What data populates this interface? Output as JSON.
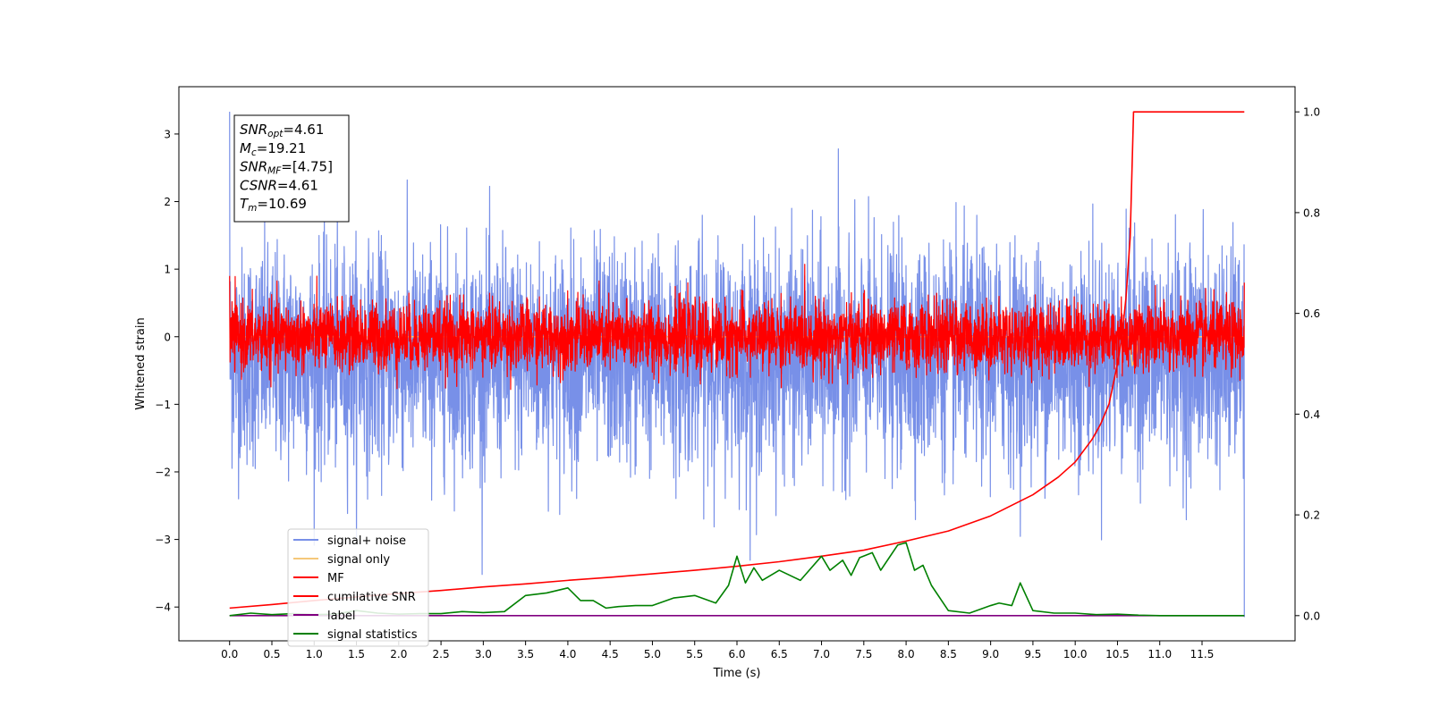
{
  "chart_data": {
    "type": "line",
    "xlabel": "Time (s)",
    "ylabel": "Whitened strain",
    "xlim": [
      -0.6,
      12.6
    ],
    "ylim": [
      -4.5,
      3.7
    ],
    "y2lim": [
      -0.05,
      1.05
    ],
    "xticks": [
      0.0,
      0.5,
      1.0,
      1.5,
      2.0,
      2.5,
      3.0,
      3.5,
      4.0,
      4.5,
      5.0,
      5.5,
      6.0,
      6.5,
      7.0,
      7.5,
      8.0,
      8.5,
      9.0,
      9.5,
      10.0,
      10.5,
      11.0,
      11.5
    ],
    "xtick_labels": [
      "0.0",
      "0.5",
      "1.0",
      "1.5",
      "2.0",
      "2.5",
      "3.0",
      "3.5",
      "4.0",
      "4.5",
      "5.0",
      "5.5",
      "6.0",
      "6.5",
      "7.0",
      "7.5",
      "8.0",
      "8.5",
      "9.0",
      "9.5",
      "10.0",
      "10.5",
      "11.0",
      "11.5"
    ],
    "yticks": [
      3,
      2,
      1,
      0,
      -1,
      -2,
      -3,
      -4
    ],
    "ytick_labels": [
      "3",
      "2",
      "1",
      "0",
      "−1",
      "−2",
      "−3",
      "−4"
    ],
    "y2ticks": [
      1.0,
      0.8,
      0.6,
      0.4,
      0.2,
      0.0
    ],
    "y2tick_labels": [
      "1.0",
      "0.8",
      "0.6",
      "0.4",
      "0.2",
      "0.0"
    ],
    "grid": false,
    "legend_position": "lower-left",
    "annotation": [
      {
        "name": "SNR",
        "sub": "opt",
        "value": "=4.61"
      },
      {
        "name": "M",
        "sub": "c",
        "value": "=19.21"
      },
      {
        "name": "SNR",
        "sub": "MF",
        "value": "=[4.75]"
      },
      {
        "name": "CSNR",
        "sub": "",
        "value": "=4.61"
      },
      {
        "name": "T",
        "sub": "m",
        "value": "=10.69"
      }
    ],
    "series": [
      {
        "name": "signal+ noise",
        "axis": "left",
        "color": "#7890e8",
        "t_range": [
          0.0,
          12.0
        ],
        "approx_mean": -0.3,
        "approx_std": 0.8,
        "extremes": [
          [
            0.0,
            3.33
          ],
          [
            12.0,
            -4.15
          ],
          [
            6.23,
            -2.93
          ],
          [
            7.2,
            2.78
          ]
        ]
      },
      {
        "name": "signal only",
        "axis": "left",
        "color": "#f5c87a",
        "t_range": [
          0.0,
          12.0
        ],
        "approx_level": 0.0,
        "extremes": [
          [
            10.69,
            -0.6
          ]
        ]
      },
      {
        "name": "MF",
        "axis": "left",
        "color": "#ff0000",
        "t_range": [
          0.0,
          12.0
        ],
        "approx_mean": 0.0,
        "approx_std": 0.25,
        "extremes": [
          [
            0.0,
            0.9
          ],
          [
            12.0,
            0.8
          ]
        ]
      },
      {
        "name": "cumilative SNR",
        "axis": "right",
        "color": "#ff0000",
        "x": [
          0.0,
          0.5,
          1.0,
          1.5,
          2.0,
          2.5,
          3.0,
          3.5,
          4.0,
          4.5,
          5.0,
          5.5,
          6.0,
          6.5,
          7.0,
          7.5,
          8.0,
          8.5,
          9.0,
          9.5,
          9.8,
          10.0,
          10.2,
          10.3,
          10.4,
          10.5,
          10.55,
          10.6,
          10.65,
          10.69,
          11.0,
          11.5,
          12.0
        ],
        "y": [
          0.015,
          0.022,
          0.03,
          0.037,
          0.044,
          0.05,
          0.057,
          0.063,
          0.07,
          0.076,
          0.083,
          0.09,
          0.098,
          0.107,
          0.118,
          0.13,
          0.148,
          0.168,
          0.198,
          0.24,
          0.275,
          0.305,
          0.35,
          0.38,
          0.42,
          0.5,
          0.55,
          0.63,
          0.75,
          1.0,
          1.0,
          1.0,
          1.0
        ]
      },
      {
        "name": "label",
        "axis": "right",
        "color": "#800080",
        "x": [
          0.0,
          12.0
        ],
        "y": [
          0.0,
          0.0
        ]
      },
      {
        "name": "signal statistics",
        "axis": "right",
        "color": "#008000",
        "x": [
          0.0,
          0.25,
          0.5,
          0.75,
          1.0,
          1.25,
          1.5,
          1.75,
          2.0,
          2.25,
          2.5,
          2.75,
          3.0,
          3.25,
          3.5,
          3.75,
          4.0,
          4.15,
          4.3,
          4.45,
          4.6,
          4.8,
          5.0,
          5.25,
          5.5,
          5.75,
          5.9,
          6.0,
          6.1,
          6.2,
          6.3,
          6.5,
          6.75,
          7.0,
          7.1,
          7.25,
          7.35,
          7.45,
          7.6,
          7.7,
          7.8,
          7.9,
          8.0,
          8.1,
          8.2,
          8.3,
          8.5,
          8.75,
          9.0,
          9.1,
          9.25,
          9.35,
          9.5,
          9.75,
          10.0,
          10.25,
          10.5,
          10.75,
          11.0,
          11.25,
          11.5,
          11.75,
          12.0
        ],
        "y": [
          0.0,
          0.005,
          0.002,
          0.004,
          0.002,
          0.003,
          0.01,
          0.005,
          0.003,
          0.004,
          0.004,
          0.008,
          0.006,
          0.008,
          0.04,
          0.045,
          0.055,
          0.03,
          0.03,
          0.015,
          0.018,
          0.02,
          0.02,
          0.035,
          0.04,
          0.025,
          0.06,
          0.118,
          0.065,
          0.095,
          0.07,
          0.09,
          0.07,
          0.118,
          0.09,
          0.11,
          0.08,
          0.115,
          0.125,
          0.09,
          0.115,
          0.14,
          0.145,
          0.09,
          0.1,
          0.06,
          0.01,
          0.005,
          0.02,
          0.025,
          0.02,
          0.065,
          0.01,
          0.005,
          0.005,
          0.002,
          0.003,
          0.001,
          0.0,
          0.0,
          0.0,
          0.0,
          0.0
        ]
      }
    ]
  }
}
